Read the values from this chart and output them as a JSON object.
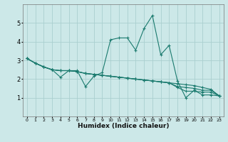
{
  "xlabel": "Humidex (Indice chaleur)",
  "ylabel": "",
  "background_color": "#cce8e8",
  "grid_color": "#aacfcf",
  "line_color": "#1a7a6e",
  "xlim": [
    -0.5,
    23.5
  ],
  "ylim": [
    0,
    6
  ],
  "yticks": [
    1,
    2,
    3,
    4,
    5
  ],
  "xticks": [
    0,
    1,
    2,
    3,
    4,
    5,
    6,
    7,
    8,
    9,
    10,
    11,
    12,
    13,
    14,
    15,
    16,
    17,
    18,
    19,
    20,
    21,
    22,
    23
  ],
  "series": [
    [
      3.1,
      2.85,
      2.65,
      2.5,
      2.1,
      2.45,
      2.45,
      1.6,
      2.15,
      2.35,
      4.1,
      4.2,
      4.2,
      3.55,
      4.7,
      5.4,
      3.3,
      3.8,
      1.9,
      1.0,
      1.4,
      1.15,
      1.15,
      1.1
    ],
    [
      3.1,
      2.85,
      2.65,
      2.5,
      2.45,
      2.45,
      2.4,
      2.3,
      2.25,
      2.2,
      2.15,
      2.1,
      2.05,
      2.0,
      1.95,
      1.9,
      1.85,
      1.8,
      1.75,
      1.7,
      1.65,
      1.55,
      1.45,
      1.1
    ],
    [
      3.1,
      2.85,
      2.65,
      2.5,
      2.45,
      2.45,
      2.4,
      2.3,
      2.25,
      2.2,
      2.15,
      2.1,
      2.05,
      2.0,
      1.95,
      1.9,
      1.85,
      1.8,
      1.6,
      1.55,
      1.5,
      1.4,
      1.4,
      1.1
    ],
    [
      3.1,
      2.85,
      2.65,
      2.5,
      2.45,
      2.45,
      2.4,
      2.3,
      2.25,
      2.2,
      2.15,
      2.1,
      2.05,
      2.0,
      1.95,
      1.9,
      1.85,
      1.8,
      1.55,
      1.35,
      1.35,
      1.3,
      1.3,
      1.1
    ]
  ]
}
